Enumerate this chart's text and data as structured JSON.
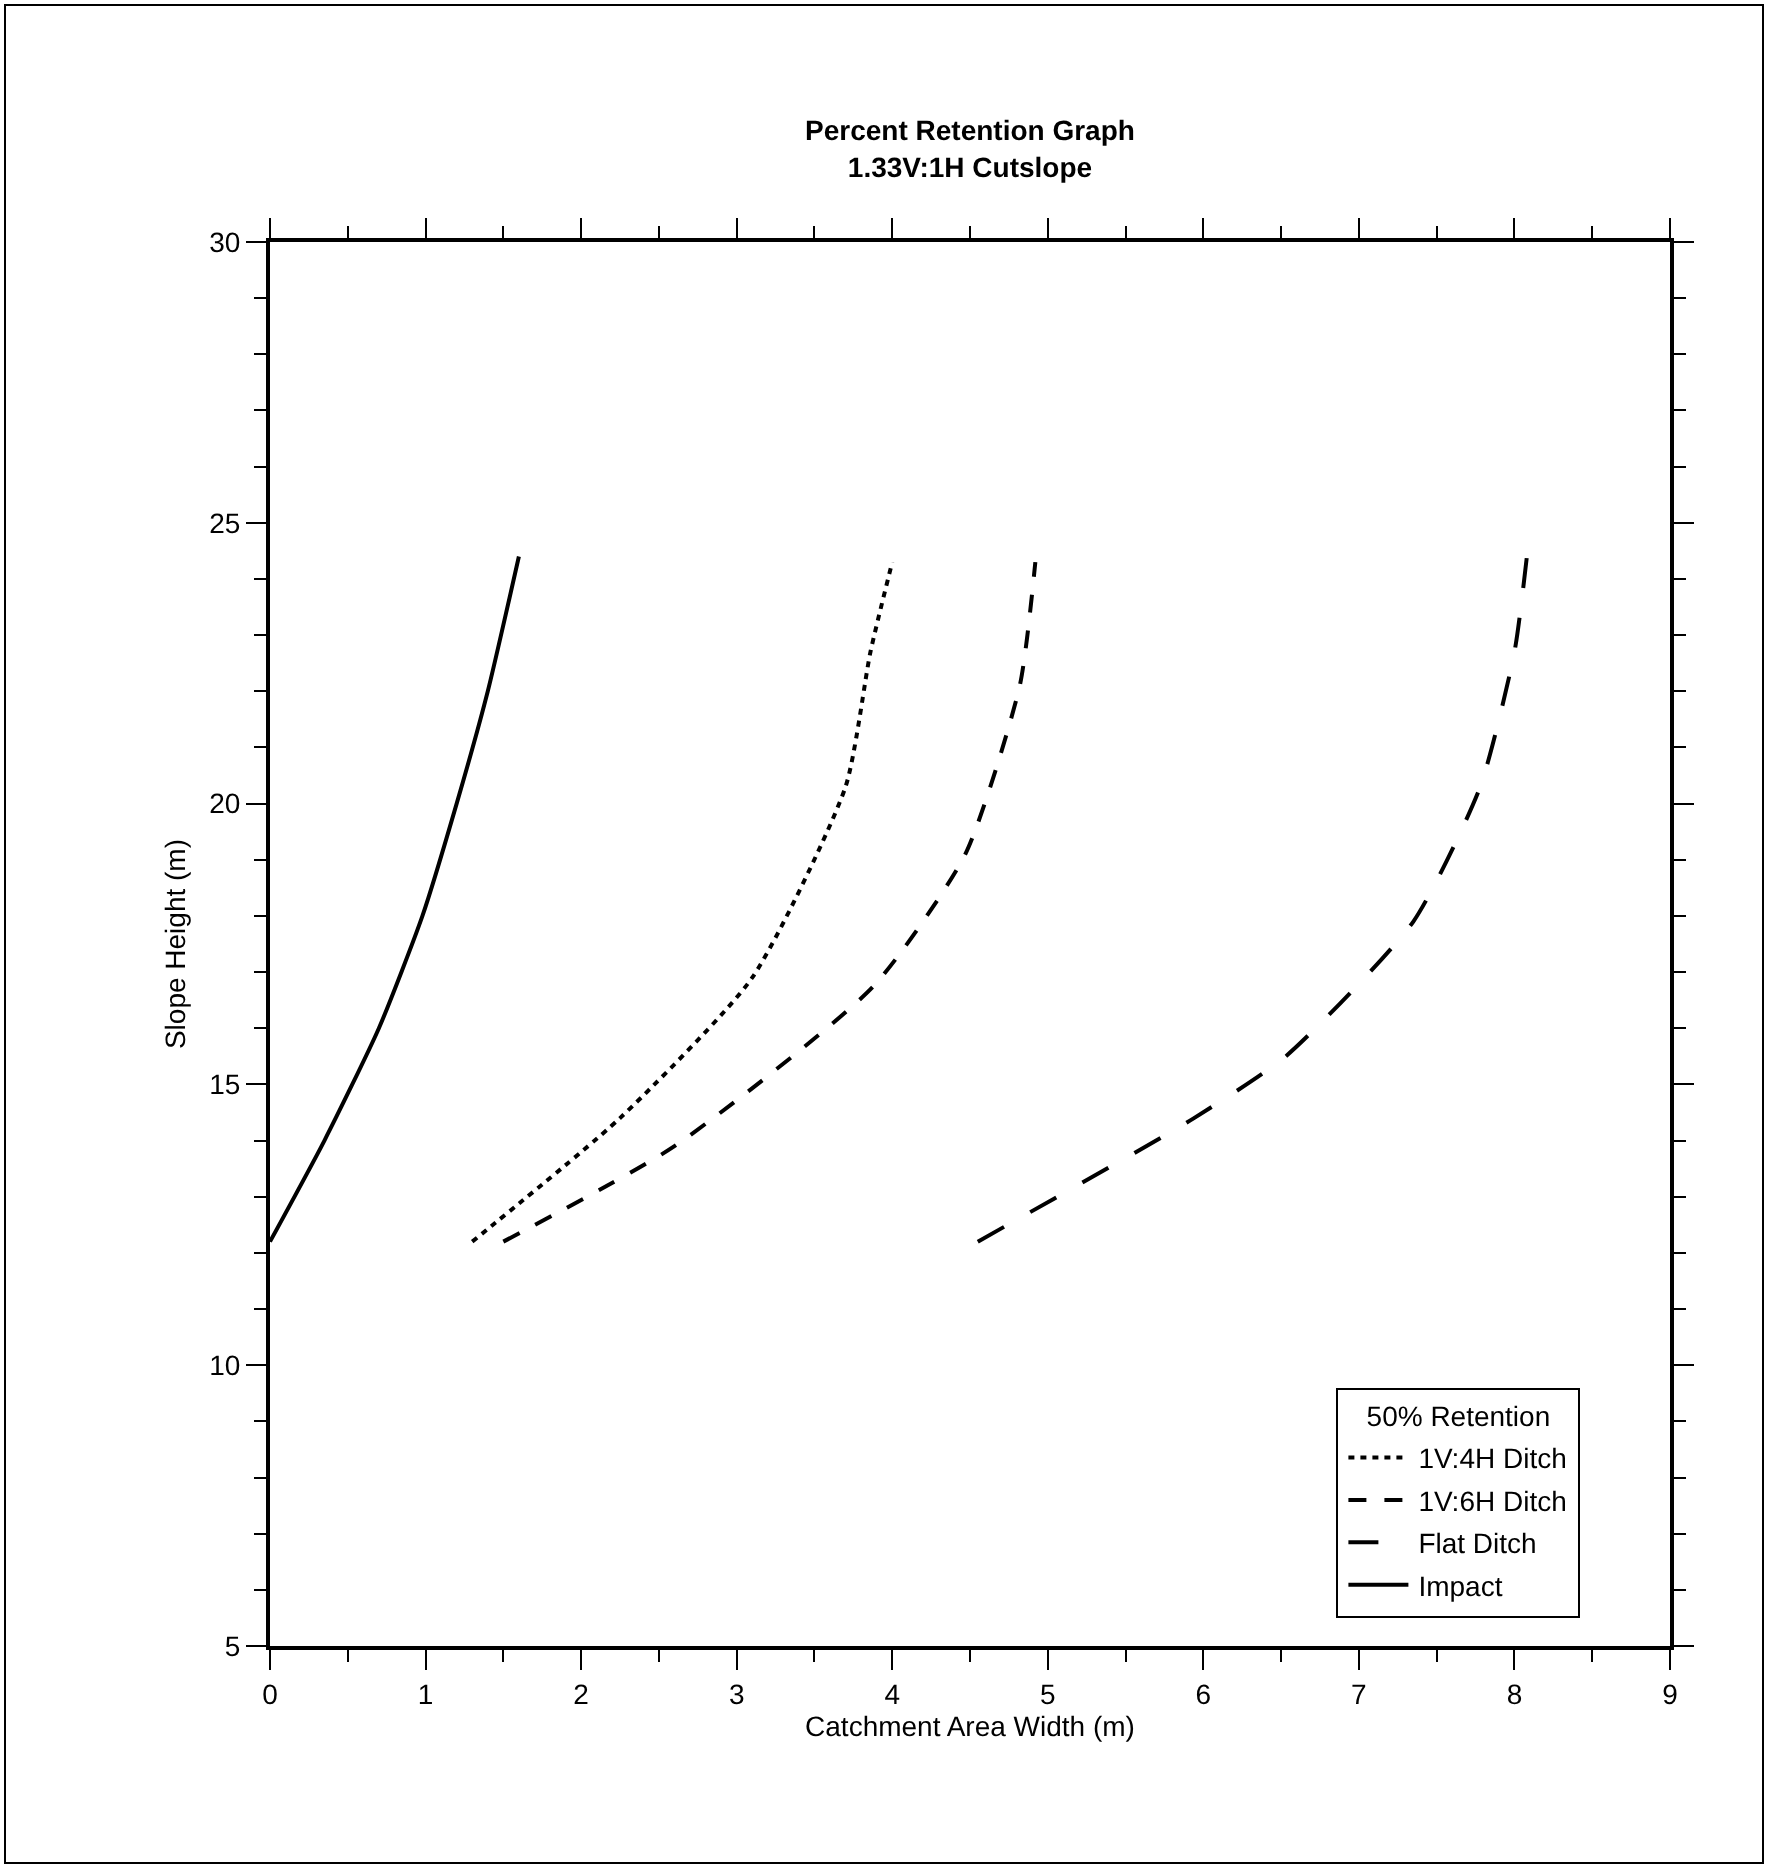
{
  "chart_data": {
    "type": "line",
    "title": "Percent Retention Graph",
    "subtitle": "1.33V:1H Cutslope",
    "xlabel": "Catchment Area Width (m)",
    "ylabel": "Slope Height (m)",
    "legend_title": "50% Retention",
    "xlim": [
      0,
      9
    ],
    "xticks": [
      0,
      1,
      2,
      3,
      4,
      5,
      6,
      7,
      8,
      9
    ],
    "ylim": [
      5,
      30
    ],
    "yticks": [
      5,
      10,
      15,
      20,
      25,
      30
    ],
    "grid": false,
    "legend": "bottom right",
    "marker": "none",
    "series": [
      {
        "name": "1V:4H Ditch",
        "color": "#000000",
        "line_style": "dotted",
        "x": [
          1.3,
          2.25,
          3.1,
          3.7,
          3.86,
          4.0
        ],
        "values": [
          12.2,
          14.4,
          16.9,
          20.3,
          22.7,
          24.3
        ]
      },
      {
        "name": "1V:6H Ditch",
        "color": "#000000",
        "line_style": "dashed",
        "x": [
          1.5,
          2.6,
          3.88,
          4.47,
          4.82,
          4.92
        ],
        "values": [
          12.2,
          13.9,
          16.75,
          19.1,
          22.1,
          24.3
        ]
      },
      {
        "name": "Flat Ditch",
        "color": "#000000",
        "line_style": "dashed",
        "x": [
          4.55,
          5.94,
          6.53,
          7.35,
          7.78,
          8.0,
          8.08
        ],
        "values": [
          12.2,
          14.4,
          15.5,
          17.9,
          20.3,
          22.7,
          24.4
        ]
      },
      {
        "name": "Impact",
        "color": "#000000",
        "line_style": "solid",
        "x": [
          0,
          0.35,
          0.7,
          0.98,
          1.2,
          1.4,
          1.6
        ],
        "values": [
          12.2,
          14,
          16,
          18,
          20,
          22,
          24.4
        ]
      }
    ]
  }
}
